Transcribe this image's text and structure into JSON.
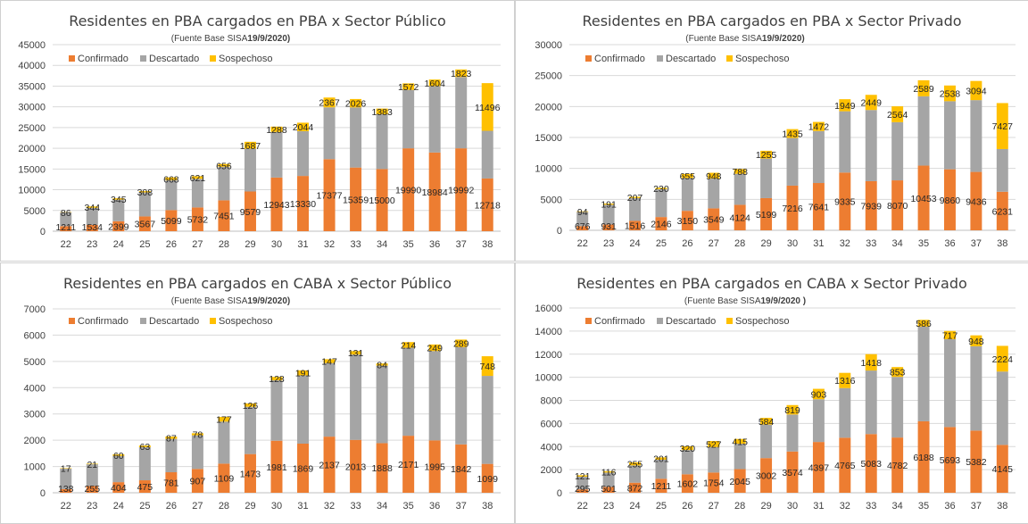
{
  "colors": {
    "confirmado": "#ED7D31",
    "descartado": "#A5A5A5",
    "sospechoso": "#FFC000"
  },
  "chart_data": [
    {
      "type": "bar",
      "stacked": true,
      "title": "Residentes en  PBA cargados en PBA x Sector Público",
      "subtitle": "(Fuente  Base SISA",
      "subtitle_date": "19/9/2020)",
      "legend": "top-left",
      "grid": true,
      "ylim": [
        0,
        45000
      ],
      "yticks": [
        0,
        5000,
        10000,
        15000,
        20000,
        25000,
        30000,
        35000,
        40000,
        45000
      ],
      "categories": [
        "22",
        "23",
        "24",
        "25",
        "26",
        "27",
        "28",
        "29",
        "30",
        "31",
        "32",
        "33",
        "34",
        "35",
        "36",
        "37",
        "38"
      ],
      "series": [
        {
          "name": "Confirmado",
          "values": [
            1211,
            1534,
            2399,
            3567,
            5099,
            5732,
            7451,
            9579,
            12943,
            13330,
            17377,
            15359,
            15000,
            19990,
            18984,
            19992,
            12718
          ]
        },
        {
          "name": "Descartado",
          "values": [
            3300,
            4100,
            5200,
            5800,
            7200,
            6900,
            8100,
            10300,
            11000,
            10800,
            12500,
            14500,
            13200,
            14100,
            16000,
            17200,
            11500
          ]
        },
        {
          "name": "Sospechoso",
          "values": [
            86,
            344,
            345,
            308,
            668,
            621,
            656,
            1687,
            1288,
            2044,
            2367,
            2026,
            1383,
            1572,
            1604,
            1823,
            11496
          ]
        }
      ]
    },
    {
      "type": "bar",
      "stacked": true,
      "title": "Residentes en  PBA cargados en PBA x Sector Privado",
      "subtitle": "(Fuente  Base SISA",
      "subtitle_date": "19/9/2020)",
      "legend": "top-left",
      "grid": true,
      "ylim": [
        0,
        30000
      ],
      "yticks": [
        0,
        5000,
        10000,
        15000,
        20000,
        25000,
        30000
      ],
      "categories": [
        "22",
        "23",
        "24",
        "25",
        "26",
        "27",
        "28",
        "29",
        "30",
        "31",
        "32",
        "33",
        "34",
        "35",
        "36",
        "37",
        "38"
      ],
      "series": [
        {
          "name": "Confirmado",
          "values": [
            676,
            931,
            1516,
            2146,
            3150,
            3549,
            4124,
            5199,
            7216,
            7641,
            9335,
            7939,
            8070,
            10453,
            9860,
            9436,
            6231
          ]
        },
        {
          "name": "Descartado",
          "values": [
            2300,
            3200,
            3700,
            4500,
            5300,
            4800,
            5000,
            6400,
            7700,
            8400,
            9900,
            11500,
            9400,
            11200,
            11000,
            11600,
            6900
          ]
        },
        {
          "name": "Sospechoso",
          "values": [
            94,
            191,
            207,
            230,
            655,
            948,
            788,
            1255,
            1435,
            1472,
            1949,
            2449,
            2564,
            2589,
            2538,
            3094,
            7427
          ]
        }
      ]
    },
    {
      "type": "bar",
      "stacked": true,
      "title": "Residentes en  PBA cargados en CABA x Sector Público",
      "subtitle": "(Fuente  Base SISA",
      "subtitle_date": "19/9/2020)",
      "legend": "top-left",
      "grid": true,
      "ylim": [
        0,
        7000
      ],
      "yticks": [
        0,
        1000,
        2000,
        3000,
        4000,
        5000,
        6000,
        7000
      ],
      "categories": [
        "22",
        "23",
        "24",
        "25",
        "26",
        "27",
        "28",
        "29",
        "30",
        "31",
        "32",
        "33",
        "34",
        "35",
        "36",
        "37",
        "38"
      ],
      "series": [
        {
          "name": "Confirmado",
          "values": [
            138,
            255,
            404,
            475,
            781,
            907,
            1109,
            1473,
            1981,
            1869,
            2137,
            2013,
            1888,
            2171,
            1995,
            1842,
            1099
          ]
        },
        {
          "name": "Descartado",
          "values": [
            780,
            830,
            1000,
            1260,
            1270,
            1280,
            1600,
            1800,
            2300,
            2600,
            2800,
            3250,
            2950,
            3350,
            3400,
            3700,
            3350
          ]
        },
        {
          "name": "Sospechoso",
          "values": [
            17,
            21,
            60,
            63,
            87,
            78,
            177,
            126,
            128,
            191,
            147,
            131,
            84,
            214,
            249,
            289,
            748
          ]
        }
      ]
    },
    {
      "type": "bar",
      "stacked": true,
      "title": "Residentes en  PBA cargados en CABA x Sector Privado",
      "subtitle": "(Fuente  Base SISA",
      "subtitle_date": "19/9/2020 )",
      "legend": "top-left",
      "grid": true,
      "ylim": [
        0,
        16000
      ],
      "yticks": [
        0,
        2000,
        4000,
        6000,
        8000,
        10000,
        12000,
        14000,
        16000
      ],
      "categories": [
        "22",
        "23",
        "24",
        "25",
        "26",
        "27",
        "28",
        "29",
        "30",
        "31",
        "32",
        "33",
        "34",
        "35",
        "36",
        "37",
        "38"
      ],
      "series": [
        {
          "name": "Confirmado",
          "values": [
            295,
            501,
            872,
            1211,
            1602,
            1754,
            2045,
            3002,
            3574,
            4397,
            4765,
            5083,
            4782,
            6188,
            5693,
            5382,
            4145
          ]
        },
        {
          "name": "Descartado",
          "values": [
            1100,
            1250,
            1500,
            1650,
            2100,
            2200,
            2200,
            2900,
            3200,
            3700,
            4300,
            5500,
            5250,
            8200,
            7600,
            7300,
            6350
          ]
        },
        {
          "name": "Sospechoso",
          "values": [
            121,
            116,
            255,
            201,
            320,
            527,
            415,
            584,
            819,
            903,
            1316,
            1418,
            853,
            586,
            717,
            948,
            2224
          ]
        }
      ]
    }
  ]
}
